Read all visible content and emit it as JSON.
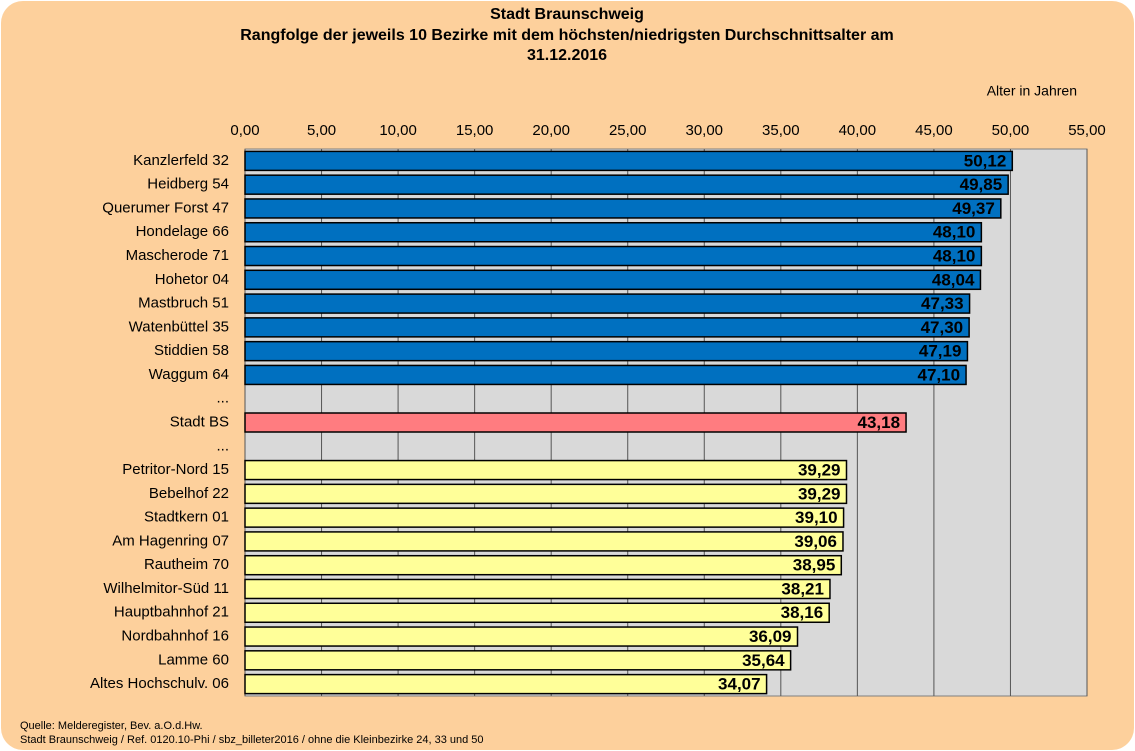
{
  "chart_data": {
    "type": "barh",
    "title": "Stadt Braunschweig",
    "subtitle": [
      "Rangfolge der jeweils 10 Bezirke mit dem höchsten/niedrigsten Durchschnittsalter am",
      "31.12.2016"
    ],
    "xlabel": "Alter in Jahren",
    "categories": [
      "Kanzlerfeld 32",
      "Heidberg 54",
      "Querumer Forst 47",
      "Hondelage 66",
      "Mascherode 71",
      "Hohetor 04",
      "Mastbruch 51",
      "Watenbüttel 35",
      "Stiddien 58",
      "Waggum 64",
      "...",
      "Stadt BS",
      "...",
      "Petritor-Nord 15",
      "Bebelhof 22",
      "Stadtkern 01",
      "Am Hagenring 07",
      "Rautheim 70",
      "Wilhelmitor-Süd 11",
      "Hauptbahnhof 21",
      "Nordbahnhof 16",
      "Lamme 60",
      "Altes Hochschulv. 06"
    ],
    "values": [
      50.12,
      49.85,
      49.37,
      48.1,
      48.1,
      48.04,
      47.33,
      47.3,
      47.19,
      47.1,
      null,
      43.18,
      null,
      39.29,
      39.29,
      39.1,
      39.06,
      38.95,
      38.21,
      38.16,
      36.09,
      35.64,
      34.07
    ],
    "value_labels": [
      "50,12",
      "49,85",
      "49,37",
      "48,10",
      "48,10",
      "48,04",
      "47,33",
      "47,30",
      "47,19",
      "47,10",
      null,
      "43,18",
      null,
      "39,29",
      "39,29",
      "39,10",
      "39,06",
      "38,95",
      "38,21",
      "38,16",
      "36,09",
      "35,64",
      "34,07"
    ],
    "colors": [
      "#0070c0",
      "#0070c0",
      "#0070c0",
      "#0070c0",
      "#0070c0",
      "#0070c0",
      "#0070c0",
      "#0070c0",
      "#0070c0",
      "#0070c0",
      null,
      "#ff7c80",
      null,
      "#ffff99",
      "#ffff99",
      "#ffff99",
      "#ffff99",
      "#ffff99",
      "#ffff99",
      "#ffff99",
      "#ffff99",
      "#ffff99",
      "#ffff99"
    ],
    "label_colors": [
      "#ffffff",
      "#ffffff",
      "#ffffff",
      "#ffffff",
      "#ffffff",
      "#ffffff",
      "#ffffff",
      "#ffffff",
      "#ffffff",
      "#ffffff",
      null,
      "#ffffff",
      null,
      "#808080",
      "#808080",
      "#808080",
      "#808080",
      "#808080",
      "#808080",
      "#808080",
      "#808080",
      "#808080",
      "#808080"
    ],
    "xlim": [
      0,
      55
    ],
    "xticks": [
      {
        "value": 0,
        "label": "0,00"
      },
      {
        "value": 5,
        "label": "5,00"
      },
      {
        "value": 10,
        "label": "10,00"
      },
      {
        "value": 15,
        "label": "15,00"
      },
      {
        "value": 20,
        "label": "20,00"
      },
      {
        "value": 25,
        "label": "25,00"
      },
      {
        "value": 30,
        "label": "30,00"
      },
      {
        "value": 35,
        "label": "35,00"
      },
      {
        "value": 40,
        "label": "40,00"
      },
      {
        "value": 45,
        "label": "45,00"
      },
      {
        "value": 50,
        "label": "50,00"
      },
      {
        "value": 55,
        "label": "55,00"
      }
    ],
    "grid": true,
    "source": [
      "Quelle: Melderegister, Bev. a.O.d.Hw.",
      "Stadt Braunschweig / Ref. 0120.10-Phi / sbz_billeter2016 / ohne die Kleinbezirke 24, 33 und 50"
    ]
  }
}
